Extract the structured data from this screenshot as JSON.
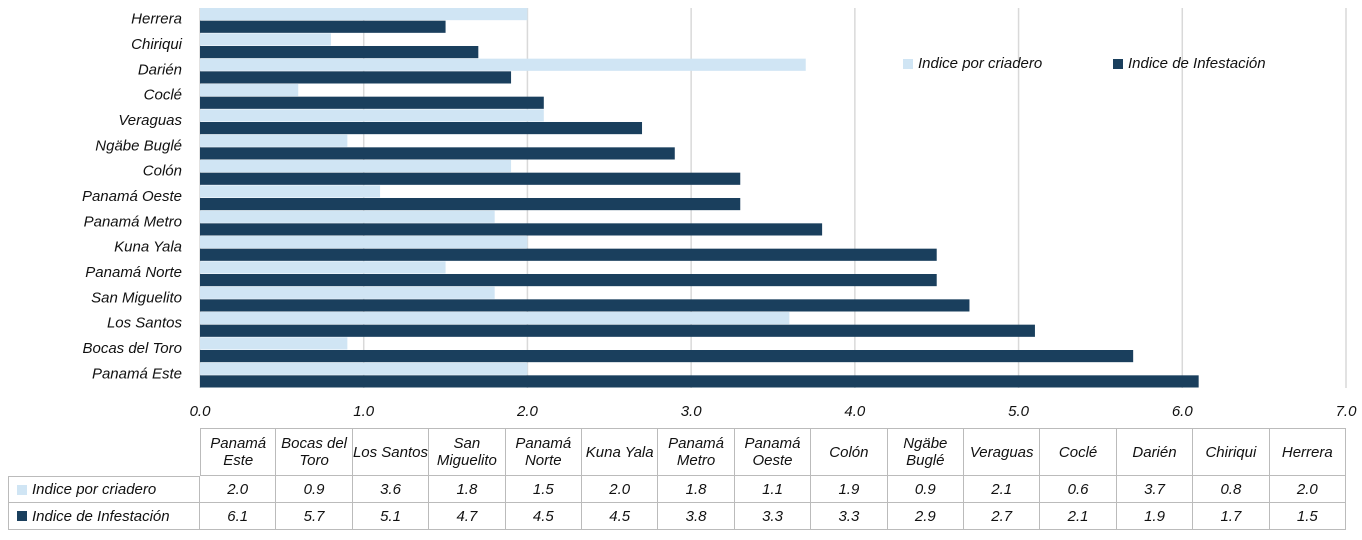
{
  "chart_data": {
    "type": "bar",
    "orientation": "horizontal",
    "categories": [
      "Panamá Este",
      "Bocas del Toro",
      "Los Santos",
      "San Miguelito",
      "Panamá Norte",
      "Kuna Yala",
      "Panamá Metro",
      "Panamá Oeste",
      "Colón",
      "Ngäbe Buglé",
      "Veraguas",
      "Coclé",
      "Darién",
      "Chiriqui",
      "Herrera"
    ],
    "series": [
      {
        "name": "Indice por criadero",
        "color": "#d0e5f4",
        "values": [
          2.0,
          0.9,
          3.6,
          1.8,
          1.5,
          2.0,
          1.8,
          1.1,
          1.9,
          0.9,
          2.1,
          0.6,
          3.7,
          0.8,
          2.0
        ],
        "value_labels": [
          "2.0",
          "0.9",
          "3.6",
          "1.8",
          "1.5",
          "2.0",
          "1.8",
          "1.1",
          "1.9",
          "0.9",
          "2.1",
          "0.6",
          "3.7",
          "0.8",
          "2.0"
        ]
      },
      {
        "name": "Indice de Infestación",
        "color": "#1a3f5d",
        "values": [
          6.1,
          5.7,
          5.1,
          4.7,
          4.5,
          4.5,
          3.8,
          3.3,
          3.3,
          2.9,
          2.7,
          2.1,
          1.9,
          1.7,
          1.5
        ],
        "value_labels": [
          "6.1",
          "5.7",
          "5.1",
          "4.7",
          "4.5",
          "4.5",
          "3.8",
          "3.3",
          "3.3",
          "2.9",
          "2.7",
          "2.1",
          "1.9",
          "1.7",
          "1.5"
        ]
      }
    ],
    "xlim": [
      0,
      7
    ],
    "xticks": [
      {
        "value": 0,
        "label": "0.0"
      },
      {
        "value": 1,
        "label": "1.0"
      },
      {
        "value": 2,
        "label": "2.0"
      },
      {
        "value": 3,
        "label": "3.0"
      },
      {
        "value": 4,
        "label": "4.0"
      },
      {
        "value": 5,
        "label": "5.0"
      },
      {
        "value": 6,
        "label": "6.0"
      },
      {
        "value": 7,
        "label": "7.0"
      }
    ],
    "grid": true,
    "legend": "upper right",
    "data_table": true
  }
}
